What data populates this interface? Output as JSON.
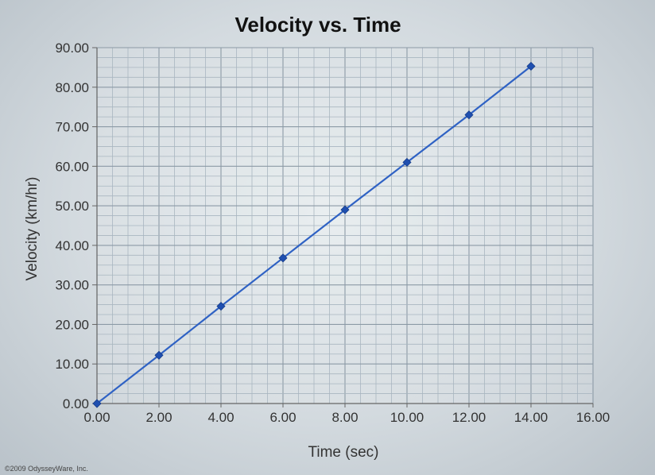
{
  "chart_data": {
    "type": "line",
    "title": "Velocity vs. Time",
    "xlabel": "Time (sec)",
    "ylabel": "Velocity (km/hr)",
    "xlim": [
      0,
      16
    ],
    "ylim": [
      0,
      90
    ],
    "x_ticks": [
      "0.00",
      "2.00",
      "4.00",
      "6.00",
      "8.00",
      "10.00",
      "12.00",
      "14.00",
      "16.00"
    ],
    "y_ticks": [
      "0.00",
      "10.00",
      "20.00",
      "30.00",
      "40.00",
      "50.00",
      "60.00",
      "70.00",
      "80.00",
      "90.00"
    ],
    "grid": true,
    "series": [
      {
        "x": [
          0,
          2,
          4,
          6,
          8,
          10,
          12,
          14
        ],
        "y": [
          0,
          12.2,
          24.6,
          36.8,
          49.0,
          61.0,
          73.0,
          85.3
        ],
        "color": "#2f62c4"
      }
    ]
  },
  "footer": {
    "copyright": "©2009 OdysseyWare, Inc."
  }
}
